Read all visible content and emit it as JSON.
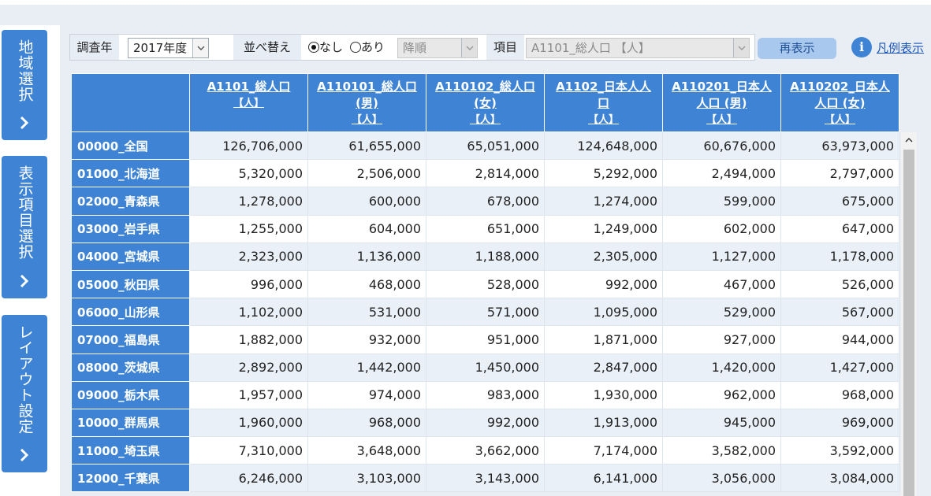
{
  "side_tabs": [
    {
      "label": "地域選択"
    },
    {
      "label": "表示項目選択"
    },
    {
      "label": "レイアウト設定"
    }
  ],
  "toolbar": {
    "year_label": "調査年",
    "year_value": "2017年度",
    "sort_label": "並べ替え",
    "sort_none": "なし",
    "sort_some": "あり",
    "sort_order_value": "降順",
    "item_label": "項目",
    "item_value": "A1101_総人口 【人】",
    "redisplay_button": "再表示",
    "legend_link": "凡例表示"
  },
  "table": {
    "columns": [
      {
        "line1": "A1101_総人口",
        "line2": "",
        "unit": "【人】"
      },
      {
        "line1": "A110101_総人口",
        "line2": "(男)",
        "unit": "【人】"
      },
      {
        "line1": "A110102_総人口",
        "line2": "(女)",
        "unit": "【人】"
      },
      {
        "line1": "A1102_日本人人",
        "line2": "口",
        "unit": "【人】"
      },
      {
        "line1": "A110201_日本人",
        "line2": "人口 (男)",
        "unit": "【人】"
      },
      {
        "line1": "A110202_日本人",
        "line2": "人口 (女)",
        "unit": "【人】"
      }
    ],
    "rows": [
      {
        "region": "00000_全国",
        "values": [
          "126,706,000",
          "61,655,000",
          "65,051,000",
          "124,648,000",
          "60,676,000",
          "63,973,000"
        ]
      },
      {
        "region": "01000_北海道",
        "values": [
          "5,320,000",
          "2,506,000",
          "2,814,000",
          "5,292,000",
          "2,494,000",
          "2,797,000"
        ]
      },
      {
        "region": "02000_青森県",
        "values": [
          "1,278,000",
          "600,000",
          "678,000",
          "1,274,000",
          "599,000",
          "675,000"
        ]
      },
      {
        "region": "03000_岩手県",
        "values": [
          "1,255,000",
          "604,000",
          "651,000",
          "1,249,000",
          "602,000",
          "647,000"
        ]
      },
      {
        "region": "04000_宮城県",
        "values": [
          "2,323,000",
          "1,136,000",
          "1,188,000",
          "2,305,000",
          "1,127,000",
          "1,178,000"
        ]
      },
      {
        "region": "05000_秋田県",
        "values": [
          "996,000",
          "468,000",
          "528,000",
          "992,000",
          "467,000",
          "526,000"
        ]
      },
      {
        "region": "06000_山形県",
        "values": [
          "1,102,000",
          "531,000",
          "571,000",
          "1,095,000",
          "529,000",
          "567,000"
        ]
      },
      {
        "region": "07000_福島県",
        "values": [
          "1,882,000",
          "932,000",
          "951,000",
          "1,871,000",
          "927,000",
          "944,000"
        ]
      },
      {
        "region": "08000_茨城県",
        "values": [
          "2,892,000",
          "1,442,000",
          "1,450,000",
          "2,847,000",
          "1,420,000",
          "1,427,000"
        ]
      },
      {
        "region": "09000_栃木県",
        "values": [
          "1,957,000",
          "974,000",
          "983,000",
          "1,930,000",
          "962,000",
          "968,000"
        ]
      },
      {
        "region": "10000_群馬県",
        "values": [
          "1,960,000",
          "968,000",
          "992,000",
          "1,913,000",
          "945,000",
          "969,000"
        ]
      },
      {
        "region": "11000_埼玉県",
        "values": [
          "7,310,000",
          "3,648,000",
          "3,662,000",
          "7,174,000",
          "3,582,000",
          "3,592,000"
        ]
      },
      {
        "region": "12000_千葉県",
        "values": [
          "6,246,000",
          "3,103,000",
          "3,143,000",
          "6,141,000",
          "3,056,000",
          "3,084,000"
        ]
      }
    ]
  },
  "colors": {
    "accent": "#3f84d4",
    "panel_bg": "#e9eef5",
    "row_alt": "#eaf0f8",
    "button_bg": "#a9c8ee",
    "link": "#1a54b8"
  },
  "icons": [
    "chevron-right-icon",
    "chevron-down-icon",
    "info-icon",
    "chevron-up-icon"
  ]
}
